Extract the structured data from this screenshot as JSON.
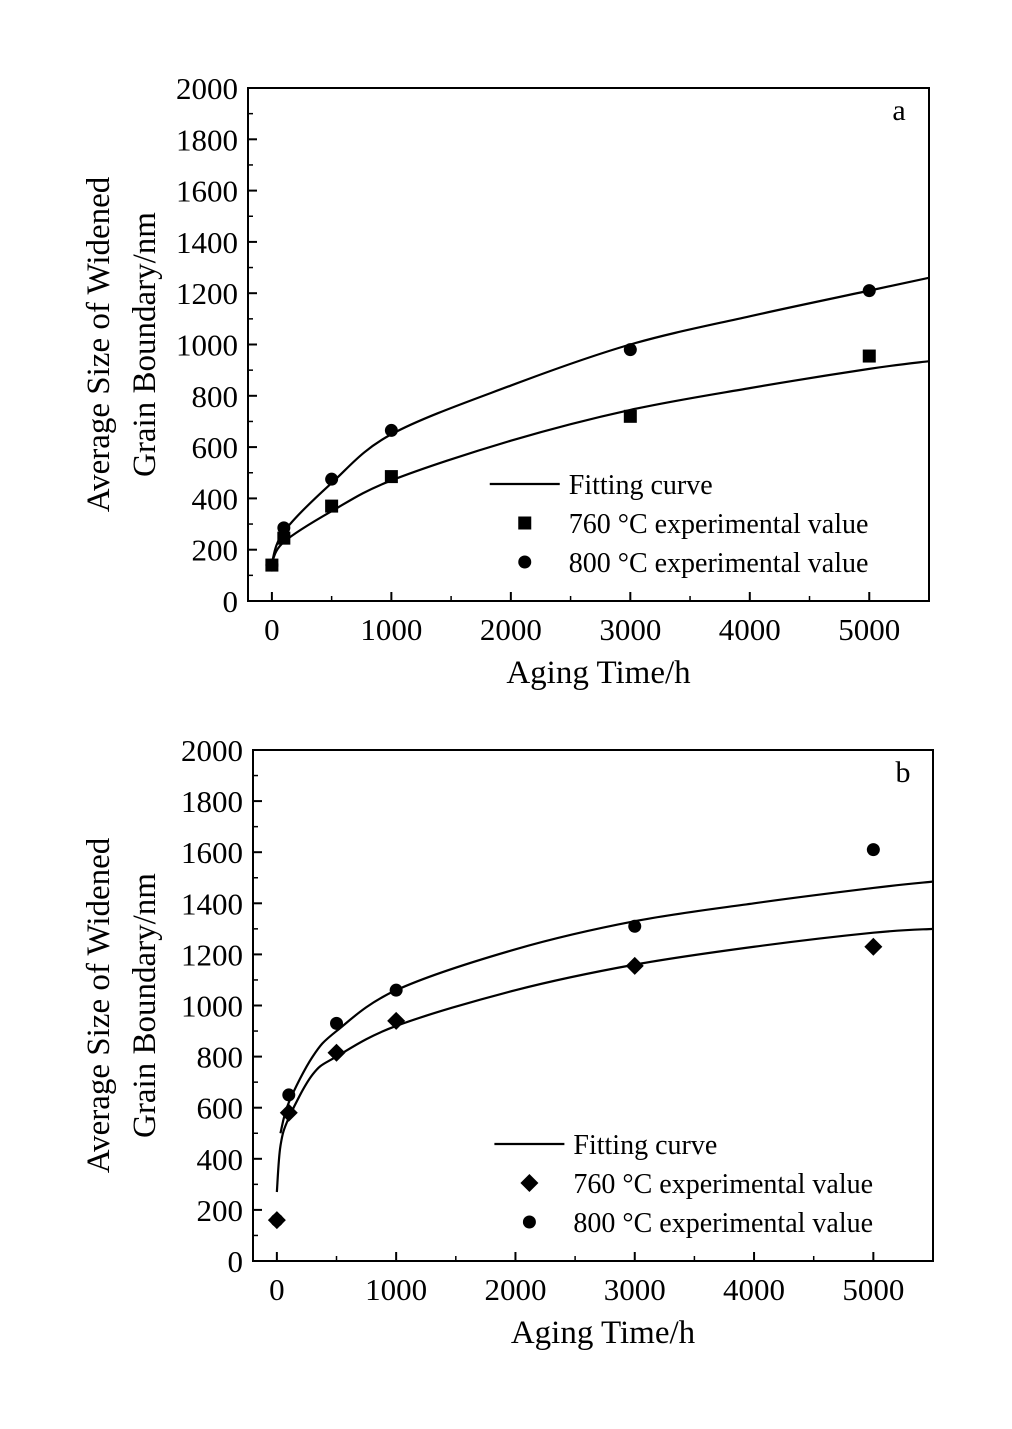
{
  "chart_data": [
    {
      "type": "scatter",
      "panel_label": "a",
      "xlabel": "Aging Time/h",
      "ylabel_lines": [
        "Average Size of Widened",
        "Grain Boundary/nm"
      ],
      "xlim": [
        -200,
        5500
      ],
      "ylim": [
        0,
        2000
      ],
      "xticks": [
        0,
        1000,
        2000,
        3000,
        4000,
        5000
      ],
      "yticks": [
        0,
        200,
        400,
        600,
        800,
        1000,
        1200,
        1400,
        1600,
        1800,
        2000
      ],
      "legend_position": "bottom-right",
      "legend": {
        "fit": "Fitting curve",
        "s1": "760 °C experimental value",
        "s2": "800 °C experimental value"
      },
      "series": [
        {
          "name": "760 °C experimental value",
          "marker": "square",
          "x": [
            0,
            100,
            500,
            1000,
            3000,
            5000
          ],
          "y": [
            140,
            245,
            370,
            485,
            720,
            955
          ]
        },
        {
          "name": "800 °C experimental value",
          "marker": "circle",
          "x": [
            0,
            100,
            500,
            1000,
            3000,
            5000
          ],
          "y": [
            140,
            285,
            475,
            665,
            980,
            1210
          ]
        }
      ],
      "fits": [
        {
          "x": [
            0,
            100,
            500,
            1000,
            2000,
            3000,
            4000,
            5000,
            5500
          ],
          "y": [
            150,
            230,
            350,
            470,
            625,
            745,
            830,
            905,
            935
          ]
        },
        {
          "x": [
            0,
            100,
            500,
            1000,
            2000,
            3000,
            4000,
            5000,
            5500
          ],
          "y": [
            150,
            270,
            460,
            650,
            840,
            1000,
            1110,
            1210,
            1260
          ]
        }
      ]
    },
    {
      "type": "scatter",
      "panel_label": "b",
      "xlabel": "Aging Time/h",
      "ylabel_lines": [
        "Average Size of Widened",
        "Grain Boundary/nm"
      ],
      "xlim": [
        -200,
        5500
      ],
      "ylim": [
        0,
        2000
      ],
      "xticks": [
        0,
        1000,
        2000,
        3000,
        4000,
        5000
      ],
      "yticks": [
        0,
        200,
        400,
        600,
        800,
        1000,
        1200,
        1400,
        1600,
        1800,
        2000
      ],
      "legend_position": "bottom-right",
      "legend": {
        "fit": "Fitting curve",
        "s1": "760 °C experimental value",
        "s2": "800 °C experimental value"
      },
      "series": [
        {
          "name": "760 °C experimental value",
          "marker": "diamond",
          "x": [
            0,
            100,
            500,
            1000,
            3000,
            5000
          ],
          "y": [
            160,
            580,
            815,
            940,
            1155,
            1230
          ]
        },
        {
          "name": "800 °C experimental value",
          "marker": "circle",
          "x": [
            0,
            100,
            500,
            1000,
            3000,
            5000
          ],
          "y": [
            160,
            650,
            930,
            1060,
            1310,
            1610
          ]
        }
      ],
      "fits": [
        {
          "x": [
            0,
            30,
            100,
            300,
            500,
            1000,
            2000,
            3000,
            4000,
            5000,
            5500
          ],
          "y": [
            270,
            450,
            560,
            730,
            800,
            920,
            1060,
            1160,
            1230,
            1285,
            1300
          ]
        },
        {
          "x": [
            30,
            100,
            300,
            500,
            1000,
            2000,
            3000,
            4000,
            5000,
            5500
          ],
          "y": [
            500,
            620,
            800,
            900,
            1060,
            1220,
            1330,
            1400,
            1460,
            1485
          ]
        }
      ]
    }
  ]
}
